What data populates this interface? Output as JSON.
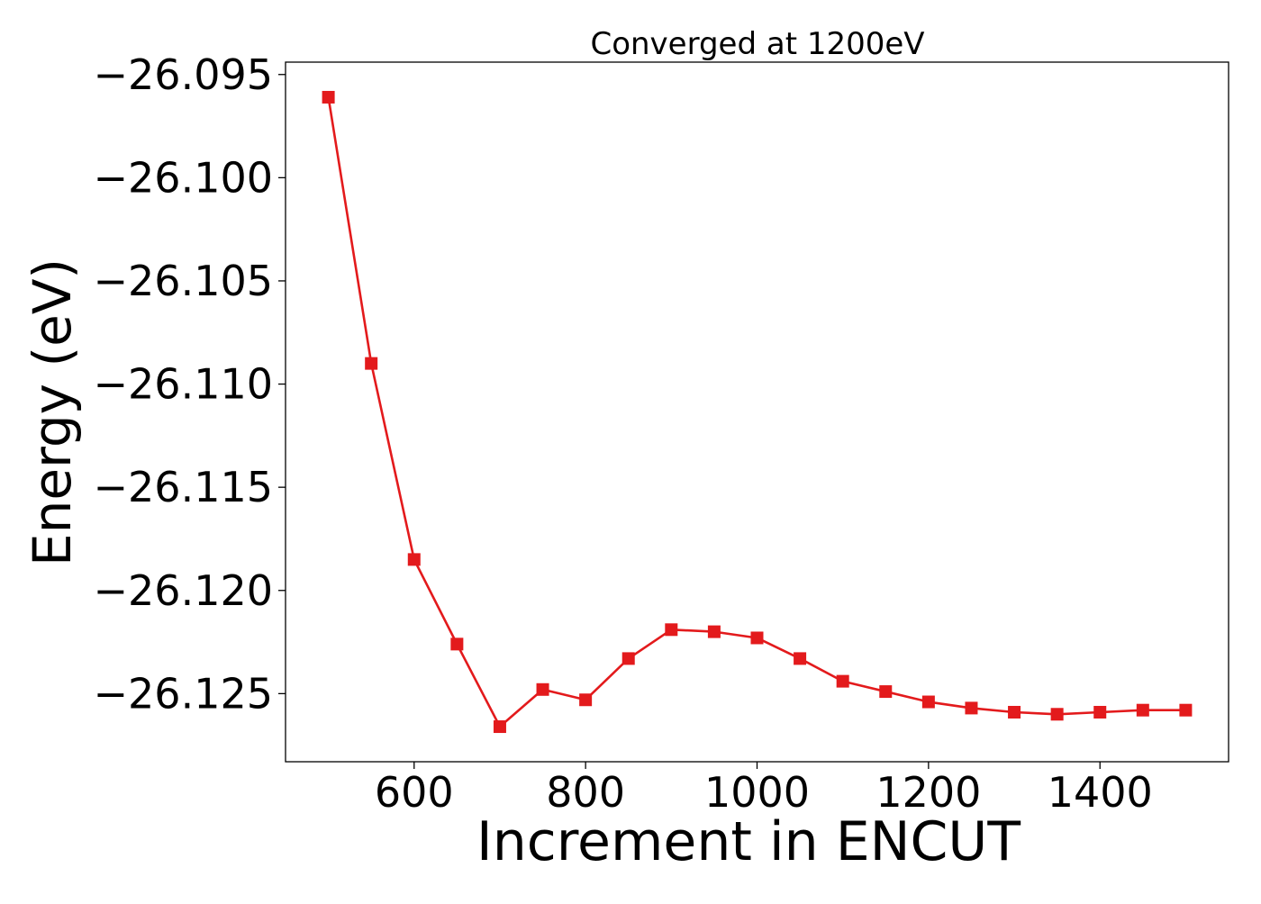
{
  "chart_data": {
    "type": "line",
    "title": "Converged at 1200eV",
    "xlabel": "Increment in ENCUT",
    "ylabel": "Energy (eV)",
    "xlim": [
      450,
      1550
    ],
    "ylim": [
      -26.1283,
      -26.0944
    ],
    "xticks": [
      600,
      800,
      1000,
      1200,
      1400
    ],
    "xtick_labels": [
      "600",
      "800",
      "1000",
      "1200",
      "1400"
    ],
    "yticks": [
      -26.095,
      -26.1,
      -26.105,
      -26.11,
      -26.115,
      -26.12,
      -26.125
    ],
    "ytick_labels": [
      "−26.095",
      "−26.100",
      "−26.105",
      "−26.110",
      "−26.115",
      "−26.120",
      "−26.125"
    ],
    "grid": false,
    "series": [
      {
        "color": "#e31a1c",
        "marker": "square",
        "x": [
          500,
          550,
          600,
          650,
          700,
          750,
          800,
          850,
          900,
          950,
          1000,
          1050,
          1100,
          1150,
          1200,
          1250,
          1300,
          1350,
          1400,
          1450,
          1500
        ],
        "y": [
          -26.0961,
          -26.109,
          -26.1185,
          -26.1226,
          -26.1266,
          -26.1248,
          -26.1253,
          -26.1233,
          -26.1219,
          -26.122,
          -26.1223,
          -26.1233,
          -26.1244,
          -26.1249,
          -26.1254,
          -26.1257,
          -26.1259,
          -26.126,
          -26.1259,
          -26.1258,
          -26.1258
        ]
      }
    ]
  }
}
